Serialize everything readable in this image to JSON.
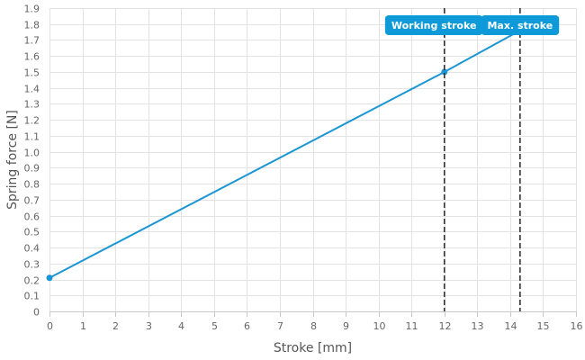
{
  "chart_data": {
    "type": "line",
    "xlabel": "Stroke [mm]",
    "ylabel": "Spring force [N]",
    "xlim": [
      0,
      16
    ],
    "ylim": [
      0,
      1.9
    ],
    "x_ticks": [
      0,
      1,
      2,
      3,
      4,
      5,
      6,
      7,
      8,
      9,
      10,
      11,
      12,
      13,
      14,
      15,
      16
    ],
    "y_ticks": [
      "0",
      "0.1",
      "0.2",
      "0.3",
      "0.4",
      "0.5",
      "0.6",
      "0.7",
      "0.8",
      "0.9",
      "1.0",
      "1.1",
      "1.2",
      "1.3",
      "1.4",
      "1.5",
      "1.6",
      "1.7",
      "1.8",
      "1.9"
    ],
    "grid": true,
    "series": [
      {
        "color": "#1a96d4",
        "x": [
          0,
          12,
          14.3
        ],
        "y": [
          0.21,
          1.5,
          1.76
        ],
        "markers": [
          {
            "x": 0,
            "y": 0.21
          },
          {
            "x": 12,
            "y": 1.5
          }
        ]
      }
    ],
    "markers": [
      {
        "label": "Working stroke",
        "x": 12
      },
      {
        "label": "Max. stroke",
        "x": 14.3
      }
    ]
  },
  "colors": {
    "accent": "#1a96d4",
    "flag": "#0e9ad8",
    "marker_line": "#333333"
  }
}
